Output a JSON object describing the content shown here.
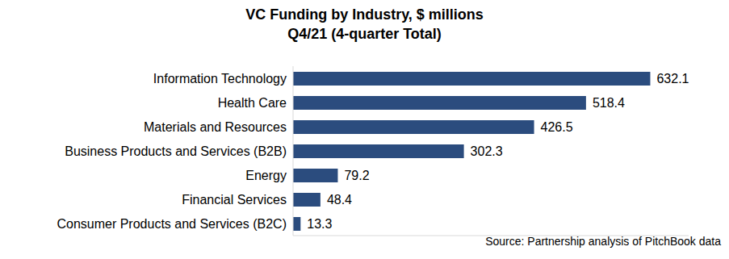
{
  "chart_data": {
    "type": "bar",
    "title": "VC Funding by Industry, $ millions",
    "subtitle": "Q4/21 (4-quarter Total)",
    "categories": [
      "Information Technology",
      "Health Care",
      "Materials and Resources",
      "Business Products and Services (B2B)",
      "Energy",
      "Financial Services",
      "Consumer Products and Services (B2C)"
    ],
    "values": [
      632.1,
      518.4,
      426.5,
      302.3,
      79.2,
      48.4,
      13.3
    ],
    "color": "#2B4C7E",
    "orientation": "horizontal",
    "xlim": [
      0,
      700
    ],
    "data_labels": true,
    "tick_labels": "y",
    "grid": false,
    "annotations": [
      "Source: Partnership analysis of PitchBook data"
    ]
  }
}
